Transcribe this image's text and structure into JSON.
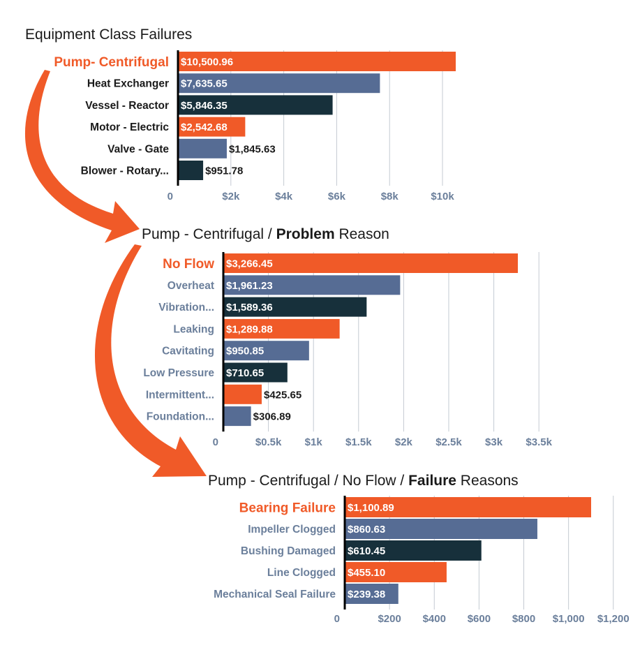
{
  "colors": {
    "orange": "#F05A28",
    "slate": "#566C94",
    "navy": "#17303B",
    "dark_text": "#1A1A1A",
    "muted_text": "#6B7F9B",
    "grid": "#C4CAD2",
    "axis": "#000000",
    "white": "#FFFFFF"
  },
  "charts": [
    {
      "title_parts": [
        {
          "text": "Equipment Class Failures",
          "bold": false
        }
      ]
    },
    {
      "title_parts": [
        {
          "text": "Pump - Centrifugal / ",
          "bold": false
        },
        {
          "text": "Problem",
          "bold": true
        },
        {
          "text": " Reason",
          "bold": false
        }
      ]
    },
    {
      "title_parts": [
        {
          "text": "Pump - Centrifugal / No Flow / ",
          "bold": false
        },
        {
          "text": "Failure",
          "bold": true
        },
        {
          "text": " Reasons",
          "bold": false
        }
      ]
    }
  ],
  "chart_data": [
    {
      "type": "bar",
      "orientation": "horizontal",
      "title": "Equipment Class Failures",
      "categories": [
        "Pump- Centrifugal",
        "Heat Exchanger",
        "Vessel - Reactor",
        "Motor - Electric",
        "Valve - Gate",
        "Blower - Rotary..."
      ],
      "values": [
        10500.96,
        7635.65,
        5846.35,
        2542.68,
        1845.63,
        951.78
      ],
      "value_labels": [
        "$10,500.96",
        "$7,635.65",
        "$5,846.35",
        "$2,542.68",
        "$1,845.63",
        "$951.78"
      ],
      "bar_colors": [
        "orange",
        "slate",
        "navy",
        "orange",
        "slate",
        "navy"
      ],
      "highlight_index": 0,
      "category_label_color": "dark_text",
      "ticks": [
        0,
        2000,
        4000,
        6000,
        8000,
        10000
      ],
      "tick_labels": [
        "0",
        "$2k",
        "$4k",
        "$6k",
        "$8k",
        "$10k"
      ],
      "xlim": [
        0,
        10800
      ],
      "grid": true
    },
    {
      "type": "bar",
      "orientation": "horizontal",
      "title": "Pump - Centrifugal / Problem Reason",
      "categories": [
        "No Flow",
        "Overheat",
        "Vibration...",
        "Leaking",
        "Cavitating",
        "Low Pressure",
        "Intermittent...",
        "Foundation..."
      ],
      "values": [
        3266.45,
        1961.23,
        1589.36,
        1289.88,
        950.85,
        710.65,
        425.65,
        306.89
      ],
      "value_labels": [
        "$3,266.45",
        "$1,961.23",
        "$1,589.36",
        "$1,289.88",
        "$950.85",
        "$710.65",
        "$425.65",
        "$306.89"
      ],
      "bar_colors": [
        "orange",
        "slate",
        "navy",
        "orange",
        "slate",
        "navy",
        "orange",
        "slate"
      ],
      "highlight_index": 0,
      "category_label_color": "muted_text",
      "ticks": [
        0,
        500,
        1000,
        1500,
        2000,
        2500,
        3000,
        3500
      ],
      "tick_labels": [
        "0",
        "$0.5k",
        "$1k",
        "$1.5k",
        "$2k",
        "$2.5k",
        "$3k",
        "$3.5k"
      ],
      "xlim": [
        0,
        3550
      ],
      "grid": true
    },
    {
      "type": "bar",
      "orientation": "horizontal",
      "title": "Pump - Centrifugal / No Flow / Failure Reasons",
      "categories": [
        "Bearing Failure",
        "Impeller Clogged",
        "Bushing Damaged",
        "Line Clogged",
        "Mechanical Seal Failure"
      ],
      "values": [
        1100.89,
        860.63,
        610.45,
        455.1,
        239.38
      ],
      "value_labels": [
        "$1,100.89",
        "$860.63",
        "$610.45",
        "$455.10",
        "$239.38"
      ],
      "bar_colors": [
        "orange",
        "slate",
        "navy",
        "orange",
        "slate"
      ],
      "highlight_index": 0,
      "category_label_color": "muted_text",
      "ticks": [
        0,
        200,
        400,
        600,
        800,
        1000,
        1200
      ],
      "tick_labels": [
        "0",
        "$200",
        "$400",
        "$600",
        "$800",
        "$1,000",
        "$1,200"
      ],
      "xlim": [
        0,
        1200
      ],
      "grid": true
    }
  ]
}
